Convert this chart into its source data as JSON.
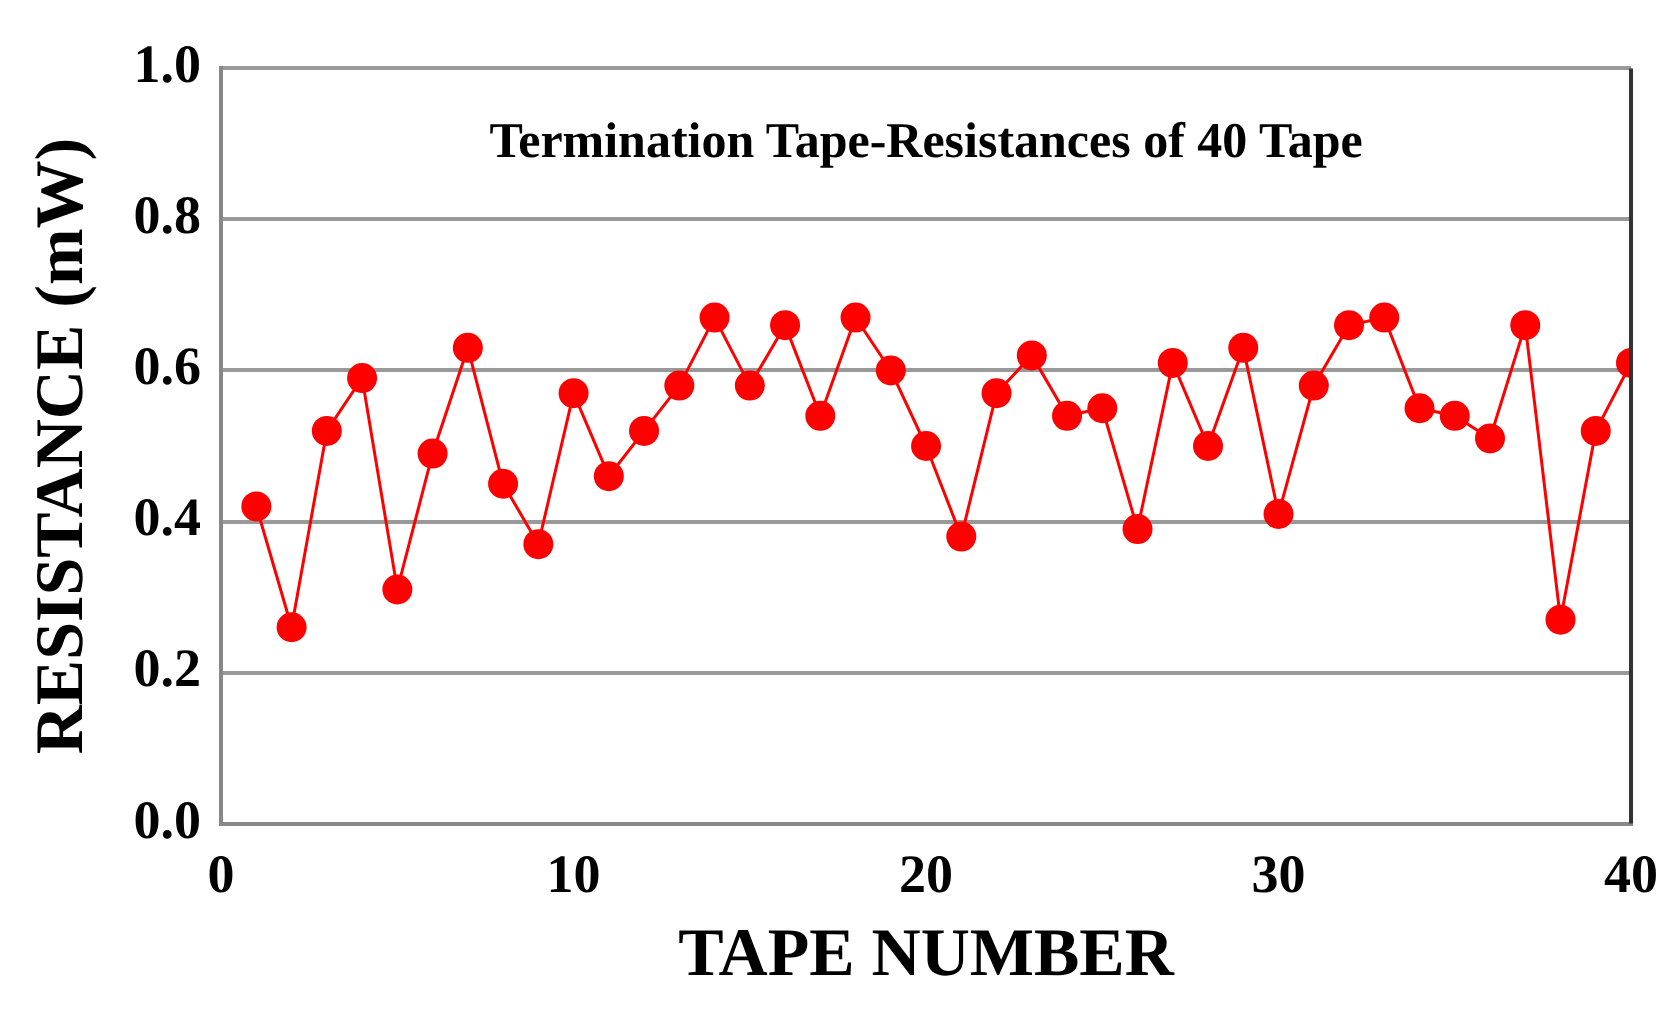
{
  "chart_data": {
    "type": "line",
    "title": "Termination Tape-Resistances of 40 Tape",
    "xlabel": "TAPE NUMBER",
    "ylabel": "RESISTANCE (mW)",
    "x": [
      1,
      2,
      3,
      4,
      5,
      6,
      7,
      8,
      9,
      10,
      11,
      12,
      13,
      14,
      15,
      16,
      17,
      18,
      19,
      20,
      21,
      22,
      23,
      24,
      25,
      26,
      27,
      28,
      29,
      30,
      31,
      32,
      33,
      34,
      35,
      36,
      37,
      38,
      39,
      40
    ],
    "series": [
      {
        "color": "#ff0000",
        "values": [
          0.42,
          0.26,
          0.52,
          0.59,
          0.31,
          0.49,
          0.63,
          0.45,
          0.37,
          0.57,
          0.46,
          0.52,
          0.58,
          0.67,
          0.58,
          0.66,
          0.54,
          0.67,
          0.6,
          0.5,
          0.38,
          0.57,
          0.62,
          0.54,
          0.55,
          0.39,
          0.61,
          0.5,
          0.63,
          0.41,
          0.58,
          0.66,
          0.67,
          0.55,
          0.54,
          0.51,
          0.66,
          0.27,
          0.52,
          0.61
        ]
      }
    ],
    "xlim": [
      0,
      40
    ],
    "xticks": [
      0,
      10,
      20,
      30,
      40
    ],
    "ylim": [
      0,
      1
    ],
    "yticks": [
      {
        "value": 0,
        "label": "0.0"
      },
      {
        "value": 0.2,
        "label": "0.2"
      },
      {
        "value": 0.4,
        "label": "0.4"
      },
      {
        "value": 0.6,
        "label": "0.6"
      },
      {
        "value": 0.8,
        "label": "0.8"
      },
      {
        "value": 1,
        "label": "1.0"
      }
    ],
    "grid": "y",
    "legend": false,
    "marker": "circle",
    "line_style": "solid"
  }
}
